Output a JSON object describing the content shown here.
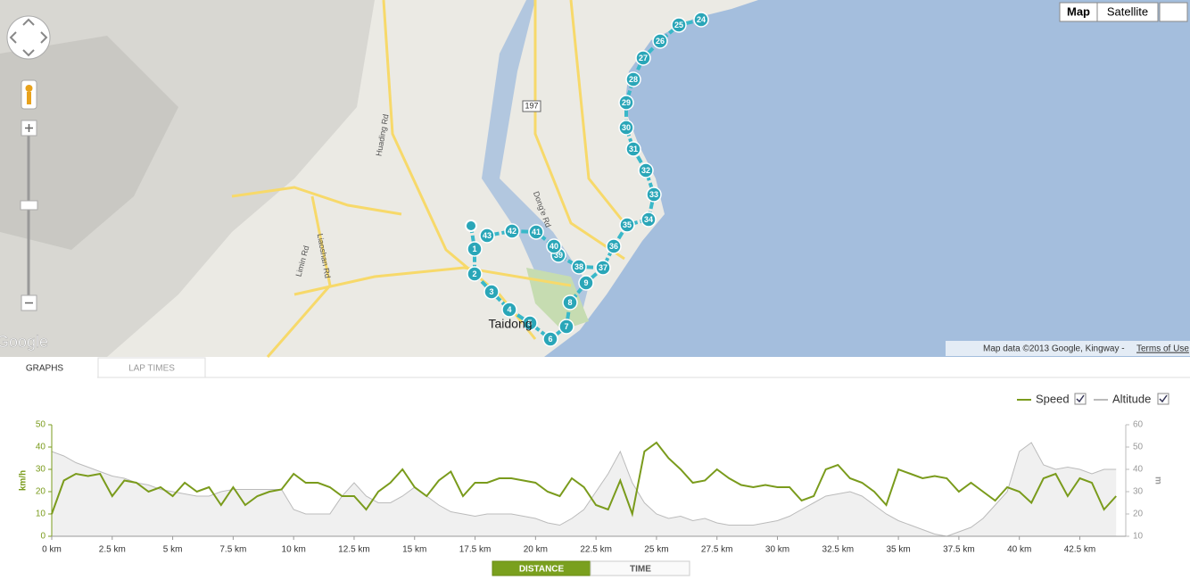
{
  "map": {
    "buttons": [
      "Map",
      "Satellite"
    ],
    "labels": [
      "Taidong",
      "197",
      "Huading Rd",
      "Dong'e Rd",
      "Liaoshan Rd",
      "Limin Rd"
    ],
    "logo": "Google",
    "attribution": "Map data ©2013 Google, Kingway - ",
    "terms": "Terms of Use",
    "markers": [
      "1",
      "2",
      "3",
      "4",
      "5",
      "6",
      "7",
      "8",
      "9",
      "24",
      "25",
      "26",
      "27",
      "28",
      "29",
      "30",
      "31",
      "32",
      "33",
      "34",
      "35",
      "36",
      "37",
      "38",
      "39",
      "40",
      "41",
      "42",
      "43"
    ]
  },
  "tabs": [
    "GRAPHS",
    "LAP TIMES"
  ],
  "toggle": [
    "DISTANCE",
    "TIME"
  ],
  "chart_data": {
    "type": "line",
    "y_label": "km/h",
    "y2_label": "m",
    "x": [
      0,
      0.5,
      1,
      1.5,
      2,
      2.5,
      3,
      3.5,
      4,
      4.5,
      5,
      5.5,
      6,
      6.5,
      7,
      7.5,
      8,
      8.5,
      9,
      9.5,
      10,
      10.5,
      11,
      11.5,
      12,
      12.5,
      13,
      13.5,
      14,
      14.5,
      15,
      15.5,
      16,
      16.5,
      17,
      17.5,
      18,
      18.5,
      19,
      19.5,
      20,
      20.5,
      21,
      21.5,
      22,
      22.5,
      23,
      23.5,
      24,
      24.5,
      25,
      25.5,
      26,
      26.5,
      27,
      27.5,
      28,
      28.5,
      29,
      29.5,
      30,
      30.5,
      31,
      31.5,
      32,
      32.5,
      33,
      33.5,
      34,
      34.5,
      35,
      35.5,
      36,
      36.5,
      37,
      37.5,
      38,
      38.5,
      39,
      39.5,
      40,
      40.5,
      41,
      41.5,
      42,
      42.5,
      43,
      43.5,
      44
    ],
    "series": [
      {
        "name": "Speed",
        "color": "#7a9b1c",
        "axis": "y",
        "values": [
          10,
          25,
          28,
          27,
          28,
          18,
          25,
          24,
          20,
          22,
          18,
          24,
          20,
          22,
          14,
          22,
          14,
          18,
          20,
          21,
          28,
          24,
          24,
          22,
          18,
          18,
          12,
          20,
          24,
          30,
          22,
          18,
          25,
          29,
          18,
          24,
          24,
          26,
          26,
          25,
          24,
          20,
          18,
          26,
          22,
          14,
          12,
          25,
          10,
          38,
          42,
          35,
          30,
          24,
          25,
          30,
          26,
          23,
          22,
          23,
          22,
          22,
          16,
          18,
          30,
          32,
          26,
          24,
          20,
          14,
          30,
          28,
          26,
          27,
          26,
          20,
          24,
          20,
          16,
          22,
          20,
          15,
          26,
          28,
          18,
          26,
          24,
          12,
          18
        ]
      },
      {
        "name": "Altitude",
        "color": "#bbbbbb",
        "axis": "y2",
        "values": [
          48,
          46,
          43,
          41,
          39,
          37,
          36,
          34,
          33,
          31,
          30,
          29,
          28,
          28,
          30,
          31,
          31,
          31,
          31,
          31,
          22,
          20,
          20,
          20,
          28,
          34,
          28,
          25,
          25,
          28,
          32,
          28,
          24,
          21,
          20,
          19,
          20,
          20,
          20,
          19,
          18,
          16,
          15,
          18,
          22,
          30,
          38,
          48,
          34,
          25,
          20,
          18,
          19,
          17,
          18,
          16,
          15,
          15,
          15,
          16,
          17,
          19,
          22,
          25,
          28,
          29,
          30,
          28,
          24,
          20,
          17,
          15,
          13,
          11,
          10,
          12,
          14,
          18,
          24,
          30,
          48,
          52,
          42,
          40,
          41,
          40,
          38,
          40,
          40
        ]
      }
    ],
    "xlim": [
      0,
      44.4
    ],
    "xticks": [
      {
        "value": 0,
        "label": "0 km"
      },
      {
        "value": 2.5,
        "label": "2.5 km"
      },
      {
        "value": 5,
        "label": "5 km"
      },
      {
        "value": 7.5,
        "label": "7.5 km"
      },
      {
        "value": 10,
        "label": "10 km"
      },
      {
        "value": 12.5,
        "label": "12.5 km"
      },
      {
        "value": 15,
        "label": "15 km"
      },
      {
        "value": 17.5,
        "label": "17.5 km"
      },
      {
        "value": 20,
        "label": "20 km"
      },
      {
        "value": 22.5,
        "label": "22.5 km"
      },
      {
        "value": 25,
        "label": "25 km"
      },
      {
        "value": 27.5,
        "label": "27.5 km"
      },
      {
        "value": 30,
        "label": "30 km"
      },
      {
        "value": 32.5,
        "label": "32.5 km"
      },
      {
        "value": 35,
        "label": "35 km"
      },
      {
        "value": 37.5,
        "label": "37.5 km"
      },
      {
        "value": 40,
        "label": "40 km"
      },
      {
        "value": 42.5,
        "label": "42.5 km"
      }
    ],
    "ylim": [
      0,
      50
    ],
    "yticks": [
      0,
      10,
      20,
      30,
      40,
      50
    ],
    "y2lim": [
      10,
      60
    ],
    "y2ticks": [
      10,
      20,
      30,
      40,
      50,
      60
    ],
    "legend": "top-right"
  }
}
